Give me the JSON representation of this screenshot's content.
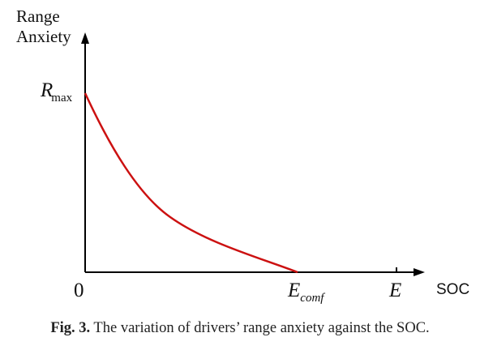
{
  "diagram": {
    "y_axis_label_line1": "Range",
    "y_axis_label_line2": "Anxiety",
    "x_axis_label": "SOC",
    "origin_label": "0",
    "r_max": {
      "main": "R",
      "sub": "max"
    },
    "e_comf": {
      "main": "E",
      "sub": "comf"
    },
    "e_label": "E",
    "curve_color": "#cc1111",
    "axis_color": "#000000"
  },
  "caption": {
    "prefix": "Fig. 3.",
    "text": " The variation of drivers’ range anxiety against the SOC."
  }
}
